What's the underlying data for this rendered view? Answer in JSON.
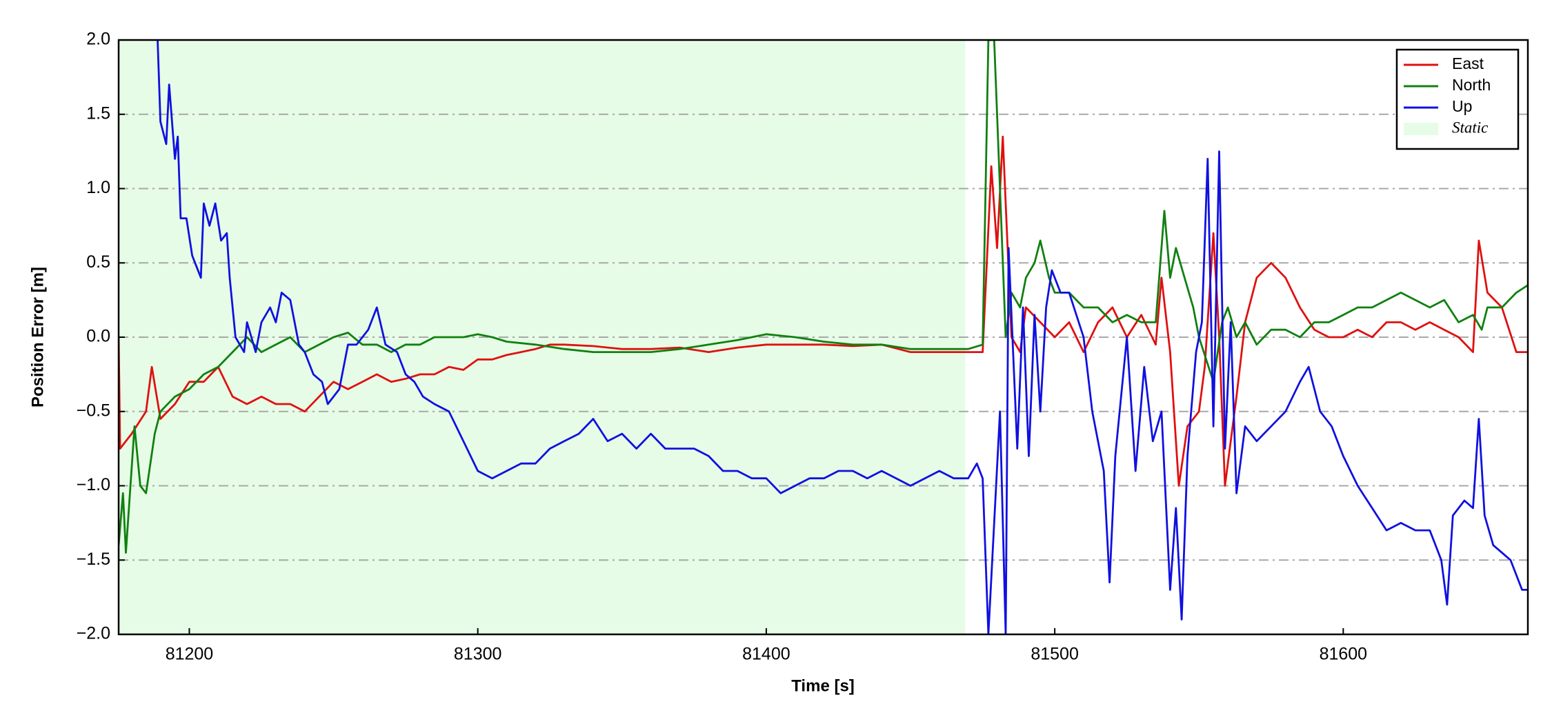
{
  "chart_data": {
    "type": "line",
    "xlabel": "Time [s]",
    "ylabel": "Position Error [m]",
    "xlim": [
      81175.5,
      81664
    ],
    "ylim": [
      -2,
      2
    ],
    "xticks": [
      81200,
      81300,
      81400,
      81500,
      81600
    ],
    "yticks": [
      {
        "value": -2,
        "label": "−2.0"
      },
      {
        "value": -1.5,
        "label": "−1.5"
      },
      {
        "value": -1,
        "label": "−1.0"
      },
      {
        "value": -0.5,
        "label": "−0.5"
      },
      {
        "value": 0,
        "label": "0.0"
      },
      {
        "value": 0.5,
        "label": "0.5"
      },
      {
        "value": 1,
        "label": "1.0"
      },
      {
        "value": 1.5,
        "label": "1.5"
      },
      {
        "value": 2,
        "label": "2.0"
      }
    ],
    "grid": true,
    "legend": "upper right",
    "shade": {
      "name": "Static",
      "color": "#e6fce6",
      "x": [
        81175.5,
        81469
      ]
    },
    "series": [
      {
        "name": "East",
        "color": "#e01010",
        "x": [
          81175.5,
          81176,
          81180,
          81185,
          81187,
          81190,
          81195,
          81200,
          81205,
          81210,
          81215,
          81220,
          81225,
          81230,
          81235,
          81240,
          81245,
          81250,
          81255,
          81260,
          81265,
          81270,
          81275,
          81280,
          81285,
          81290,
          81295,
          81300,
          81305,
          81310,
          81315,
          81320,
          81325,
          81330,
          81340,
          81350,
          81360,
          81370,
          81380,
          81390,
          81400,
          81410,
          81420,
          81430,
          81440,
          81450,
          81460,
          81470,
          81475,
          81478,
          81480,
          81482,
          81485,
          81488,
          81490,
          81495,
          81500,
          81505,
          81510,
          81515,
          81520,
          81525,
          81530,
          81535,
          81537,
          81540,
          81543,
          81546,
          81550,
          81552,
          81555,
          81557,
          81559,
          81563,
          81566,
          81570,
          81575,
          81580,
          81585,
          81590,
          81595,
          81600,
          81605,
          81610,
          81615,
          81620,
          81625,
          81630,
          81635,
          81640,
          81645,
          81647,
          81650,
          81655,
          81660,
          81664
        ],
        "values": [
          0.0,
          -0.75,
          -0.65,
          -0.5,
          -0.2,
          -0.55,
          -0.45,
          -0.3,
          -0.3,
          -0.2,
          -0.4,
          -0.45,
          -0.4,
          -0.45,
          -0.45,
          -0.5,
          -0.4,
          -0.3,
          -0.35,
          -0.3,
          -0.25,
          -0.3,
          -0.28,
          -0.25,
          -0.25,
          -0.2,
          -0.22,
          -0.15,
          -0.15,
          -0.12,
          -0.1,
          -0.08,
          -0.05,
          -0.05,
          -0.06,
          -0.08,
          -0.08,
          -0.07,
          -0.1,
          -0.07,
          -0.05,
          -0.05,
          -0.05,
          -0.06,
          -0.05,
          -0.1,
          -0.1,
          -0.1,
          -0.1,
          1.15,
          0.6,
          1.35,
          0.0,
          -0.1,
          0.2,
          0.1,
          0.0,
          0.1,
          -0.1,
          0.1,
          0.2,
          0.0,
          0.15,
          -0.05,
          0.4,
          -0.1,
          -1.0,
          -0.6,
          -0.5,
          -0.2,
          0.7,
          0.0,
          -1.0,
          -0.4,
          0.1,
          0.4,
          0.5,
          0.4,
          0.2,
          0.05,
          0.0,
          0.0,
          0.05,
          0.0,
          0.1,
          0.1,
          0.05,
          0.1,
          0.05,
          0.0,
          -0.1,
          0.65,
          0.3,
          0.2,
          -0.1,
          -0.1
        ]
      },
      {
        "name": "North",
        "color": "#108010",
        "x": [
          81175.5,
          81177,
          81178,
          81181,
          81183,
          81185,
          81188,
          81190,
          81195,
          81200,
          81205,
          81210,
          81215,
          81220,
          81225,
          81230,
          81235,
          81240,
          81245,
          81250,
          81255,
          81260,
          81265,
          81270,
          81275,
          81280,
          81285,
          81290,
          81295,
          81300,
          81305,
          81310,
          81320,
          81330,
          81340,
          81350,
          81360,
          81370,
          81380,
          81390,
          81400,
          81410,
          81420,
          81430,
          81440,
          81450,
          81460,
          81470,
          81475,
          81477,
          81479,
          81481,
          81483,
          81485,
          81488,
          81490,
          81493,
          81495,
          81498,
          81500,
          81505,
          81510,
          81515,
          81520,
          81525,
          81530,
          81535,
          81538,
          81540,
          81542,
          81545,
          81548,
          81550,
          81555,
          81558,
          81560,
          81563,
          81566,
          81570,
          81575,
          81580,
          81585,
          81590,
          81595,
          81600,
          81605,
          81610,
          81615,
          81620,
          81625,
          81630,
          81635,
          81640,
          81645,
          81648,
          81650,
          81655,
          81660,
          81664
        ],
        "values": [
          -1.4,
          -1.05,
          -1.45,
          -0.6,
          -1.0,
          -1.05,
          -0.65,
          -0.5,
          -0.4,
          -0.35,
          -0.25,
          -0.2,
          -0.1,
          0.0,
          -0.1,
          -0.05,
          0.0,
          -0.1,
          -0.05,
          0.0,
          0.03,
          -0.05,
          -0.05,
          -0.1,
          -0.05,
          -0.05,
          0.0,
          0.0,
          0.0,
          0.02,
          0.0,
          -0.03,
          -0.05,
          -0.08,
          -0.1,
          -0.1,
          -0.1,
          -0.08,
          -0.05,
          -0.02,
          0.02,
          0.0,
          -0.03,
          -0.05,
          -0.05,
          -0.08,
          -0.08,
          -0.08,
          -0.05,
          2.0,
          2.0,
          1.0,
          0.0,
          0.3,
          0.2,
          0.4,
          0.5,
          0.65,
          0.4,
          0.3,
          0.3,
          0.2,
          0.2,
          0.1,
          0.15,
          0.1,
          0.1,
          0.85,
          0.4,
          0.6,
          0.4,
          0.2,
          0.0,
          -0.3,
          0.1,
          0.2,
          0.0,
          0.1,
          -0.05,
          0.05,
          0.05,
          0.0,
          0.1,
          0.1,
          0.15,
          0.2,
          0.2,
          0.25,
          0.3,
          0.25,
          0.2,
          0.25,
          0.1,
          0.15,
          0.05,
          0.2,
          0.2,
          0.3,
          0.35
        ]
      },
      {
        "name": "Up",
        "color": "#1010e0",
        "x": [
          81189,
          81190,
          81192,
          81193,
          81195,
          81196,
          81197,
          81199,
          81201,
          81204,
          81205,
          81207,
          81209,
          81211,
          81213,
          81214,
          81216,
          81219,
          81220,
          81223,
          81225,
          81228,
          81230,
          81232,
          81235,
          81238,
          81240,
          81243,
          81246,
          81248,
          81252,
          81255,
          81258,
          81262,
          81265,
          81268,
          81272,
          81275,
          81278,
          81281,
          81285,
          81290,
          81295,
          81300,
          81305,
          81310,
          81315,
          81320,
          81325,
          81330,
          81335,
          81340,
          81345,
          81350,
          81355,
          81360,
          81365,
          81370,
          81375,
          81380,
          81385,
          81390,
          81395,
          81400,
          81405,
          81410,
          81415,
          81420,
          81425,
          81430,
          81435,
          81440,
          81445,
          81450,
          81455,
          81460,
          81465,
          81470,
          81473,
          81475,
          81477,
          81481,
          81483,
          81484,
          81487,
          81489,
          81491,
          81493,
          81495,
          81497,
          81499,
          81502,
          81505,
          81510,
          81513,
          81517,
          81519,
          81521,
          81525,
          81528,
          81531,
          81534,
          81537,
          81540,
          81542,
          81544,
          81546,
          81549,
          81551,
          81553,
          81555,
          81557,
          81559,
          81561,
          81563,
          81566,
          81570,
          81575,
          81580,
          81585,
          81588,
          81592,
          81596,
          81600,
          81605,
          81610,
          81615,
          81620,
          81625,
          81630,
          81634,
          81636,
          81638,
          81642,
          81645,
          81647,
          81649,
          81652,
          81655,
          81658,
          81662,
          81664
        ],
        "values": [
          2.0,
          1.45,
          1.3,
          1.7,
          1.2,
          1.35,
          0.8,
          0.8,
          0.55,
          0.4,
          0.9,
          0.75,
          0.9,
          0.65,
          0.7,
          0.4,
          0.0,
          -0.1,
          0.1,
          -0.1,
          0.1,
          0.2,
          0.1,
          0.3,
          0.25,
          -0.05,
          -0.1,
          -0.25,
          -0.3,
          -0.45,
          -0.35,
          -0.05,
          -0.05,
          0.05,
          0.2,
          -0.05,
          -0.1,
          -0.25,
          -0.3,
          -0.4,
          -0.45,
          -0.5,
          -0.7,
          -0.9,
          -0.95,
          -0.9,
          -0.85,
          -0.85,
          -0.75,
          -0.7,
          -0.65,
          -0.55,
          -0.7,
          -0.65,
          -0.75,
          -0.65,
          -0.75,
          -0.75,
          -0.75,
          -0.8,
          -0.9,
          -0.9,
          -0.95,
          -0.95,
          -1.05,
          -1.0,
          -0.95,
          -0.95,
          -0.9,
          -0.9,
          -0.95,
          -0.9,
          -0.95,
          -1.0,
          -0.95,
          -0.9,
          -0.95,
          -0.95,
          -0.85,
          -0.95,
          -2.0,
          -0.5,
          -2.0,
          0.6,
          -0.75,
          0.2,
          -0.8,
          0.15,
          -0.5,
          0.2,
          0.45,
          0.3,
          0.3,
          0.0,
          -0.5,
          -0.9,
          -1.65,
          -0.8,
          0.0,
          -0.9,
          -0.2,
          -0.7,
          -0.5,
          -1.7,
          -1.15,
          -1.9,
          -0.8,
          -0.1,
          0.1,
          1.2,
          -0.6,
          1.25,
          -0.75,
          0.1,
          -1.05,
          -0.6,
          -0.7,
          -0.6,
          -0.5,
          -0.3,
          -0.2,
          -0.5,
          -0.6,
          -0.8,
          -1.0,
          -1.15,
          -1.3,
          -1.25,
          -1.3,
          -1.3,
          -1.5,
          -1.8,
          -1.2,
          -1.1,
          -1.15,
          -0.55,
          -1.2,
          -1.4,
          -1.45,
          -1.5,
          -1.7,
          -1.7
        ]
      }
    ]
  }
}
